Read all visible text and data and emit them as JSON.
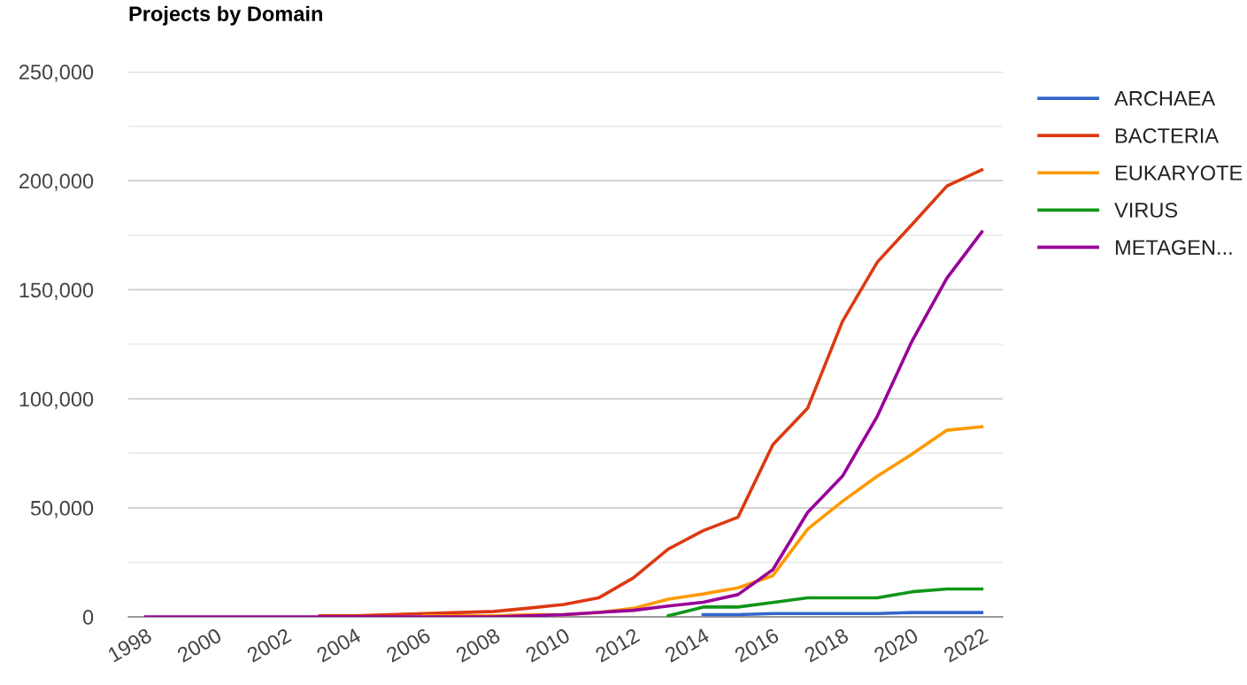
{
  "chart_data": {
    "type": "line",
    "title": "Projects by Domain",
    "x": [
      1998,
      1999,
      2000,
      2001,
      2002,
      2003,
      2004,
      2005,
      2006,
      2007,
      2008,
      2009,
      2010,
      2011,
      2012,
      2013,
      2014,
      2015,
      2016,
      2017,
      2018,
      2019,
      2020,
      2021,
      2022
    ],
    "series": [
      {
        "name": "ARCHAEA",
        "color": "#3366cc",
        "values": [
          null,
          null,
          null,
          null,
          null,
          null,
          null,
          null,
          null,
          null,
          null,
          null,
          null,
          null,
          null,
          null,
          1000,
          1000,
          1500,
          1500,
          1500,
          1500,
          2000,
          2000,
          2000
        ]
      },
      {
        "name": "BACTERIA",
        "color": "#dc3912",
        "values": [
          null,
          null,
          null,
          null,
          null,
          500,
          500,
          1000,
          1500,
          2000,
          2500,
          4000,
          5700,
          8700,
          17900,
          31100,
          39500,
          45700,
          78900,
          95700,
          135500,
          162700,
          180000,
          197600,
          205000
        ]
      },
      {
        "name": "EUKARYOTE",
        "color": "#ff9900",
        "values": [
          null,
          null,
          null,
          null,
          null,
          null,
          null,
          null,
          500,
          500,
          500,
          1000,
          1000,
          2000,
          3900,
          8100,
          10500,
          13300,
          18900,
          40200,
          53000,
          64500,
          74700,
          85600,
          87200
        ]
      },
      {
        "name": "VIRUS",
        "color": "#109618",
        "values": [
          null,
          null,
          null,
          null,
          null,
          null,
          null,
          null,
          null,
          null,
          null,
          null,
          null,
          null,
          null,
          500,
          4500,
          4500,
          6600,
          8700,
          8700,
          8700,
          11500,
          12800,
          12800
        ]
      },
      {
        "name": "METAGEN...",
        "color": "#990099",
        "values": [
          0,
          0,
          0,
          0,
          0,
          0,
          0,
          0,
          0,
          0,
          0,
          500,
          1000,
          2000,
          3000,
          5000,
          6700,
          10200,
          21600,
          47900,
          64500,
          92000,
          126600,
          155400,
          176500
        ]
      }
    ],
    "xlim": [
      1997.5,
      2022.6
    ],
    "xticks": [
      1998,
      2000,
      2002,
      2004,
      2006,
      2008,
      2010,
      2012,
      2014,
      2016,
      2018,
      2020,
      2022
    ],
    "ylim": [
      0,
      250000
    ],
    "yticks": [
      {
        "value": 0,
        "label": "0"
      },
      {
        "value": 25000,
        "label": null
      },
      {
        "value": 50000,
        "label": "50,000"
      },
      {
        "value": 75000,
        "label": null
      },
      {
        "value": 100000,
        "label": "100,000"
      },
      {
        "value": 125000,
        "label": null
      },
      {
        "value": 150000,
        "label": "150,000"
      },
      {
        "value": 175000,
        "label": null
      },
      {
        "value": 200000,
        "label": "200,000"
      },
      {
        "value": 225000,
        "label": null
      },
      {
        "value": 250000,
        "label": "250,000"
      }
    ],
    "grid": "y",
    "legend": "top right",
    "marker": "none",
    "line_style": "solid"
  }
}
